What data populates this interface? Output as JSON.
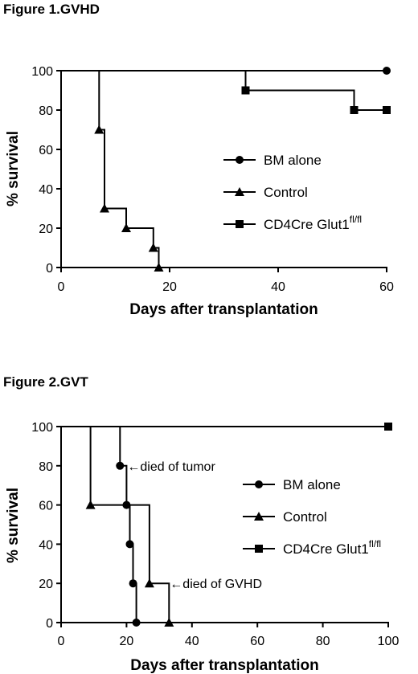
{
  "chart_data": [
    {
      "type": "line",
      "title": "Figure 1.GVHD",
      "xlabel": "Days after transplantation",
      "ylabel": "% survival",
      "xlim": [
        0,
        60
      ],
      "ylim": [
        0,
        100
      ],
      "xticks": [
        "0",
        "20",
        "40",
        "60"
      ],
      "yticks": [
        "0",
        "20",
        "40",
        "60",
        "80",
        "100"
      ],
      "legend_position": "right-middle",
      "series": [
        {
          "name": "BM alone",
          "marker": "circle",
          "steps": [
            [
              0,
              100
            ],
            [
              60,
              100
            ]
          ],
          "markers": [
            [
              60,
              100
            ]
          ]
        },
        {
          "name": "Control",
          "marker": "triangle",
          "steps": [
            [
              0,
              100
            ],
            [
              7,
              100
            ],
            [
              7,
              70
            ],
            [
              8,
              70
            ],
            [
              8,
              30
            ],
            [
              12,
              30
            ],
            [
              12,
              20
            ],
            [
              17,
              20
            ],
            [
              17,
              10
            ],
            [
              18,
              10
            ],
            [
              18,
              0
            ]
          ],
          "markers": [
            [
              7,
              70
            ],
            [
              8,
              30
            ],
            [
              12,
              20
            ],
            [
              17,
              10
            ],
            [
              18,
              0
            ]
          ]
        },
        {
          "name": "CD4Cre Glut1",
          "name_sup": "fl/fl",
          "marker": "square",
          "steps": [
            [
              0,
              100
            ],
            [
              34,
              100
            ],
            [
              34,
              90
            ],
            [
              54,
              90
            ],
            [
              54,
              80
            ],
            [
              60,
              80
            ]
          ],
          "markers": [
            [
              34,
              90
            ],
            [
              54,
              80
            ],
            [
              60,
              80
            ]
          ]
        }
      ],
      "annotations": []
    },
    {
      "type": "line",
      "title": "Figure 2.GVT",
      "xlabel": "Days after transplantation",
      "ylabel": "% survival",
      "xlim": [
        0,
        100
      ],
      "ylim": [
        0,
        100
      ],
      "xticks": [
        "0",
        "20",
        "40",
        "60",
        "80",
        "100"
      ],
      "yticks": [
        "0",
        "20",
        "40",
        "60",
        "80",
        "100"
      ],
      "legend_position": "right-middle",
      "series": [
        {
          "name": "BM alone",
          "marker": "circle",
          "steps": [
            [
              0,
              100
            ],
            [
              18,
              100
            ],
            [
              18,
              80
            ],
            [
              20,
              80
            ],
            [
              20,
              60
            ],
            [
              21,
              60
            ],
            [
              21,
              40
            ],
            [
              22,
              40
            ],
            [
              22,
              20
            ],
            [
              23,
              20
            ],
            [
              23,
              0
            ]
          ],
          "markers": [
            [
              18,
              80
            ],
            [
              20,
              60
            ],
            [
              21,
              40
            ],
            [
              22,
              20
            ],
            [
              23,
              0
            ]
          ]
        },
        {
          "name": "Control",
          "marker": "triangle",
          "steps": [
            [
              0,
              100
            ],
            [
              9,
              100
            ],
            [
              9,
              60
            ],
            [
              27,
              60
            ],
            [
              27,
              20
            ],
            [
              33,
              20
            ],
            [
              33,
              0
            ]
          ],
          "markers": [
            [
              9,
              60
            ],
            [
              27,
              20
            ],
            [
              33,
              0
            ]
          ]
        },
        {
          "name": "CD4Cre Glut1",
          "name_sup": "fl/fl",
          "marker": "square",
          "steps": [
            [
              0,
              100
            ],
            [
              100,
              100
            ]
          ],
          "markers": [
            [
              100,
              100
            ]
          ]
        }
      ],
      "annotations": [
        {
          "text": "←died of tumor",
          "x": 20,
          "y": 80
        },
        {
          "text": "←died of GVHD",
          "x": 33,
          "y": 20
        }
      ]
    }
  ]
}
